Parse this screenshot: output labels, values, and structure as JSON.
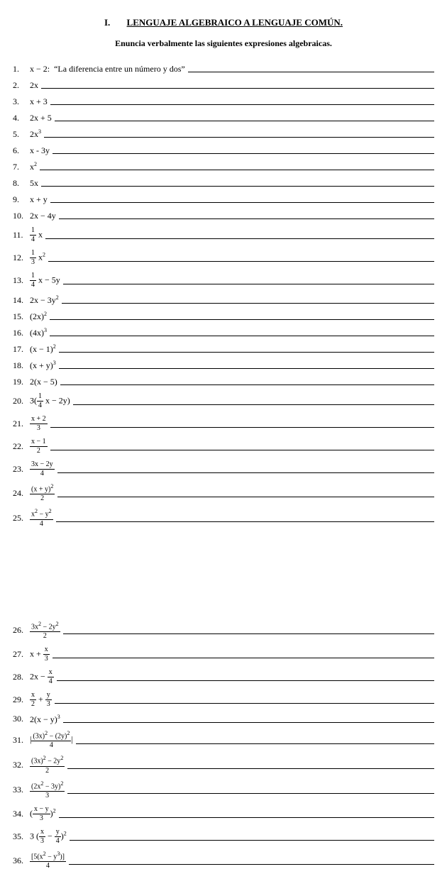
{
  "header": {
    "section_number": "I.",
    "title": "LENGUAJE ALGEBRAICO A LENGUAJE COMÚN.",
    "subtitle": "Enuncia verbalmente las siguientes expresiones algebraicas."
  },
  "items_block1": [
    {
      "n": "1.",
      "expr_html": "x − 2:",
      "answer": "“La diferencia entre un número y dos”"
    },
    {
      "n": "2.",
      "expr_html": "2x"
    },
    {
      "n": "3.",
      "expr_html": "x + 3"
    },
    {
      "n": "4.",
      "expr_html": "2x + 5"
    },
    {
      "n": "5.",
      "expr_html": "2x<span class='sup'>3</span>"
    },
    {
      "n": "6.",
      "expr_html": "x - 3y"
    },
    {
      "n": "7.",
      "expr_html": "x<span class='sup'>2</span>"
    },
    {
      "n": "8.",
      "expr_html": "5x"
    },
    {
      "n": "9.",
      "expr_html": "x + y"
    },
    {
      "n": "10.",
      "expr_html": "2x − 4y"
    },
    {
      "n": "11.",
      "expr_html": "<span class='frac'><span class='top'>1</span><span class='bot'>4</span></span> x",
      "tall": true
    },
    {
      "n": "12.",
      "expr_html": "<span class='frac'><span class='top'>1</span><span class='bot'>3</span></span> x<span class='sup'>2</span>",
      "tall": true
    },
    {
      "n": "13.",
      "expr_html": "<span class='frac'><span class='top'>1</span><span class='bot'>4</span></span> x − 5y",
      "tall": true
    },
    {
      "n": "14.",
      "expr_html": "2x − 3y<span class='sup'>2</span>"
    },
    {
      "n": "15.",
      "expr_html": "(2x)<span class='sup'>2</span>"
    },
    {
      "n": "16.",
      "expr_html": "(4x)<span class='sup'>3</span>"
    },
    {
      "n": "17.",
      "expr_html": "(x − 1)<span class='sup'>2</span>"
    },
    {
      "n": "18.",
      "expr_html": "(x + y)<span class='sup'>3</span>"
    },
    {
      "n": "19.",
      "expr_html": "2(x − 5)"
    },
    {
      "n": "20.",
      "expr_html": "3(<span class='frac'><span class='top'>1</span><span class='bot'>4</span></span> x − 2y)",
      "tall": true
    },
    {
      "n": "21.",
      "expr_html": "<span class='frac'><span class='top'>x + 2</span><span class='bot'>3</span></span>",
      "tall": true
    },
    {
      "n": "22.",
      "expr_html": "<span class='frac'><span class='top'>x − 1</span><span class='bot'>2</span></span>",
      "tall": true
    },
    {
      "n": "23.",
      "expr_html": "<span class='frac'><span class='top'>3x − 2y</span><span class='bot'>4</span></span>",
      "tall": true
    },
    {
      "n": "24.",
      "expr_html": "<span class='frac'><span class='top'>(x + y)<span class=\"sup\">2</span></span><span class='bot'>2</span></span>",
      "tall": true
    },
    {
      "n": "25.",
      "expr_html": "<span class='frac'><span class='top'>x<span class=\"sup\">2</span> − y<span class=\"sup\">2</span></span><span class='bot'>4</span></span>",
      "tall": true
    }
  ],
  "items_block2": [
    {
      "n": "26.",
      "expr_html": "<span class='frac'><span class='top'>3x<span class=\"sup\">2</span> − 2y<span class=\"sup\">2</span></span><span class='bot'>2</span></span>",
      "tall": true
    },
    {
      "n": "27.",
      "expr_html": "x + <span class='frac'><span class='top'>x</span><span class='bot'>3</span></span>",
      "tall": true
    },
    {
      "n": "28.",
      "expr_html": "2x − <span class='frac'><span class='top'>x</span><span class='bot'>4</span></span>",
      "tall": true
    },
    {
      "n": "29.",
      "expr_html": "<span class='frac'><span class='top'>x</span><span class='bot'>2</span></span> + <span class='frac'><span class='top'>y</span><span class='bot'>3</span></span>",
      "tall": true
    },
    {
      "n": "30.",
      "expr_html": "2(x − y)<span class='sup'>3</span>"
    },
    {
      "n": "31.",
      "expr_html": "|<span class='frac'><span class='top'>(3x)<span class=\"sup\">2</span> − (2y)<span class=\"sup\">2</span></span><span class='bot'>4</span></span>|",
      "tall": true
    },
    {
      "n": "32.",
      "expr_html": "<span class='frac'><span class='top'>(3x)<span class=\"sup\">2</span> − 2y<span class=\"sup\">2</span></span><span class='bot'>2</span></span>",
      "tall": true
    },
    {
      "n": "33.",
      "expr_html": "<span class='frac'><span class='top'>(2x<span class=\"sup\">2</span> − 3y)<span class=\"sup\">2</span></span><span class='bot'>3</span></span>",
      "tall": true
    },
    {
      "n": "34.",
      "expr_html": "(<span class='frac'><span class='top'>x − y</span><span class='bot'>3</span></span>)<span class='sup'>2</span>",
      "tall": true
    },
    {
      "n": "35.",
      "expr_html": "3 (<span class='frac'><span class='top'>x</span><span class='bot'>3</span></span> − <span class='frac'><span class='top'>y</span><span class='bot'>4</span></span>)<span class='sup'>2</span>",
      "tall": true
    },
    {
      "n": "36.",
      "expr_html": "<span class='frac'><span class='top'>[5(x<span class=\"sup\">2</span> − y<span class=\"sup\">3</span>)]</span><span class='bot'>4</span></span>",
      "tall": true
    }
  ]
}
